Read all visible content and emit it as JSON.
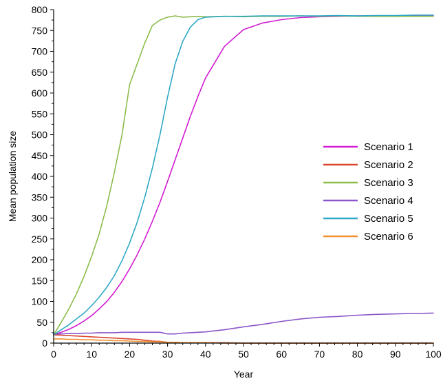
{
  "chart_data": {
    "type": "line",
    "title": "",
    "xlabel": "Year",
    "ylabel": "Mean population size",
    "xlim": [
      0,
      100
    ],
    "ylim": [
      0,
      800
    ],
    "x_ticks": [
      0,
      10,
      20,
      30,
      40,
      50,
      60,
      70,
      80,
      90,
      100
    ],
    "y_ticks": [
      0,
      50,
      100,
      150,
      200,
      250,
      300,
      350,
      400,
      450,
      500,
      550,
      600,
      650,
      700,
      750,
      800
    ],
    "grid": false,
    "legend_position": "center-right",
    "x": [
      0,
      2,
      4,
      6,
      8,
      10,
      12,
      14,
      16,
      18,
      20,
      22,
      24,
      26,
      28,
      30,
      32,
      34,
      36,
      38,
      40,
      45,
      50,
      55,
      60,
      65,
      70,
      75,
      80,
      85,
      90,
      95,
      100
    ],
    "series": [
      {
        "name": "Scenario 1",
        "color": "#d21cd2",
        "values": [
          20,
          26,
          33,
          42,
          53,
          66,
          82,
          100,
          122,
          148,
          178,
          212,
          250,
          292,
          338,
          388,
          440,
          492,
          544,
          592,
          636,
          712,
          752,
          768,
          776,
          781,
          783,
          784,
          785,
          785,
          785,
          785,
          785
        ]
      },
      {
        "name": "Scenario 2",
        "color": "#d9442e",
        "values": [
          20,
          19,
          18,
          17,
          16,
          15,
          14,
          13,
          12,
          11,
          10,
          9,
          7,
          5,
          4,
          2,
          2,
          1,
          1,
          1,
          1,
          1,
          0,
          0,
          0,
          0,
          0,
          0,
          0,
          0,
          0,
          0,
          0
        ]
      },
      {
        "name": "Scenario 3",
        "color": "#8cbc4a",
        "values": [
          20,
          50,
          82,
          118,
          160,
          208,
          262,
          330,
          410,
          500,
          620,
          670,
          720,
          762,
          775,
          782,
          785,
          782,
          783,
          784,
          783,
          784,
          783,
          784,
          784,
          785,
          784,
          785,
          784,
          784,
          784,
          784,
          784
        ]
      },
      {
        "name": "Scenario 4",
        "color": "#8a55c8",
        "values": [
          22,
          22,
          23,
          23,
          24,
          24,
          25,
          25,
          25,
          26,
          26,
          26,
          26,
          26,
          26,
          22,
          22,
          24,
          25,
          26,
          27,
          32,
          39,
          45,
          52,
          58,
          62,
          64,
          67,
          69,
          70,
          71,
          72
        ]
      },
      {
        "name": "Scenario 5",
        "color": "#2ea8c4",
        "values": [
          20,
          32,
          44,
          58,
          72,
          90,
          110,
          134,
          162,
          198,
          240,
          290,
          350,
          420,
          500,
          590,
          670,
          724,
          758,
          776,
          782,
          784,
          784,
          785,
          785,
          785,
          785,
          786,
          785,
          786,
          786,
          787,
          787
        ]
      },
      {
        "name": "Scenario 6",
        "color": "#f09030",
        "values": [
          10,
          10,
          9,
          9,
          8,
          8,
          7,
          7,
          6,
          6,
          5,
          4,
          4,
          3,
          3,
          2,
          2,
          1,
          1,
          1,
          1,
          0,
          0,
          0,
          0,
          0,
          0,
          0,
          0,
          0,
          0,
          0,
          0
        ]
      }
    ]
  }
}
